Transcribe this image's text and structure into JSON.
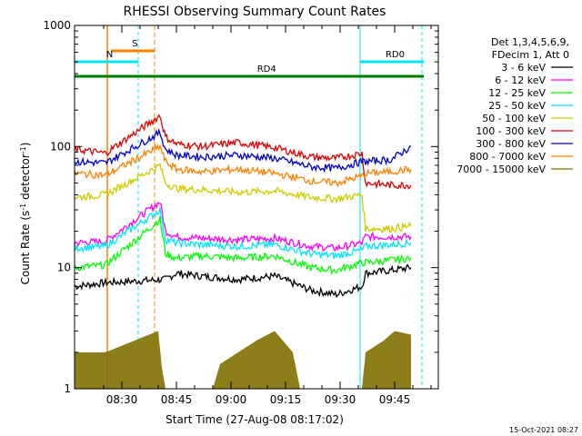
{
  "colors": {
    "3-6": "#000000",
    "6-12": "#ff00ff",
    "12-25": "#00ff00",
    "25-50": "#00e5ff",
    "50-100": "#cccc00",
    "100-300": "#dd0000",
    "300-800": "#0000cc",
    "800-7000": "#ff8000",
    "7000-15000": "#807000",
    "flare_bar": "#ff8000",
    "cyan_bar": "#00e5ff",
    "green_bar": "#008000"
  },
  "chart_data": {
    "type": "line",
    "title": "RHESSI Observing Summary Count Rates",
    "xlabel": "Start Time (27-Aug-08 08:17:02)",
    "ylabel_main": "Count Rate (s",
    "ylabel_sup1": "-1",
    "ylabel_mid": " detector",
    "ylabel_sup2": "-1",
    "ylabel_end": ")",
    "y_scale": "log",
    "ylim": [
      1,
      1000
    ],
    "y_ticks": [
      1,
      10,
      100,
      1000
    ],
    "y_tick_labels": [
      "1",
      "10",
      "100",
      "1000"
    ],
    "x_range_min": [
      0,
      100
    ],
    "x_tick_values": [
      13,
      28,
      43,
      58,
      73,
      88
    ],
    "x_tick_labels": [
      "08:30",
      "08:45",
      "09:00",
      "09:15",
      "09:30",
      "09:45"
    ],
    "legend_header": [
      "Det 1,3,4,5,6,9,",
      "FDecim 1, Att 0"
    ],
    "series": [
      {
        "name": "3 - 6 keV",
        "key": "3-6",
        "x": [
          0,
          8.5,
          25,
          28,
          35,
          45,
          55,
          65,
          72,
          79,
          80,
          87,
          92.5
        ],
        "y": [
          7,
          7.5,
          8,
          9,
          8.5,
          8,
          8.5,
          6.5,
          6,
          7,
          9,
          9.5,
          10
        ]
      },
      {
        "name": "6 - 12 keV",
        "key": "6-12",
        "x": [
          0,
          8.5,
          23.5,
          25,
          28,
          35,
          45,
          55,
          65,
          72,
          79,
          80,
          87,
          92.5
        ],
        "y": [
          16,
          16.5,
          35,
          20,
          18,
          17.5,
          17,
          17.5,
          15,
          14.5,
          16,
          18,
          18,
          18
        ]
      },
      {
        "name": "12 - 25 keV",
        "key": "12-25",
        "x": [
          0,
          8.5,
          23.5,
          25,
          28,
          35,
          45,
          55,
          65,
          72,
          79,
          80,
          87,
          92.5
        ],
        "y": [
          10,
          10.5,
          25,
          13,
          12,
          12.5,
          12,
          12.5,
          10,
          9.5,
          11,
          11,
          11.5,
          12
        ]
      },
      {
        "name": "25 - 50 keV",
        "key": "25-50",
        "x": [
          0,
          8.5,
          23.5,
          25,
          28,
          35,
          45,
          55,
          65,
          72,
          79,
          80,
          87,
          92.5
        ],
        "y": [
          14.5,
          15,
          30,
          17,
          16,
          15.5,
          15,
          15.5,
          13,
          12.5,
          14,
          15,
          15.5,
          16
        ]
      },
      {
        "name": "50 - 100 keV",
        "key": "50-100",
        "x": [
          0,
          8.5,
          23.5,
          25,
          28,
          35,
          45,
          55,
          65,
          72,
          79,
          80,
          87,
          92.5
        ],
        "y": [
          38,
          40,
          70,
          50,
          45,
          44,
          42,
          43,
          38,
          37,
          40,
          21,
          21,
          22
        ]
      },
      {
        "name": "100 - 300 keV",
        "key": "100-300",
        "x": [
          0,
          8.5,
          23.5,
          25,
          28,
          35,
          45,
          55,
          65,
          72,
          79,
          80,
          87,
          92.5
        ],
        "y": [
          95,
          88,
          180,
          120,
          105,
          100,
          108,
          98,
          82,
          80,
          88,
          50,
          48,
          48
        ]
      },
      {
        "name": "300 - 800 keV",
        "key": "300-800",
        "x": [
          0,
          8.5,
          23.5,
          25,
          28,
          35,
          45,
          55,
          65,
          72,
          79,
          80,
          87,
          92.5
        ],
        "y": [
          75,
          73,
          130,
          95,
          85,
          82,
          85,
          80,
          68,
          66,
          75,
          75,
          78,
          100
        ]
      },
      {
        "name": "800 - 7000 keV",
        "key": "800-7000",
        "x": [
          0,
          8.5,
          23.5,
          25,
          28,
          35,
          45,
          55,
          65,
          72,
          79,
          80,
          87,
          92.5
        ],
        "y": [
          60,
          58,
          100,
          75,
          65,
          62,
          65,
          60,
          52,
          50,
          57,
          60,
          62,
          65
        ]
      },
      {
        "name": "7000 - 15000 keV",
        "key": "7000-15000",
        "x": [
          0,
          3,
          8.5,
          23,
          24,
          25,
          38,
          40,
          45,
          50,
          55,
          60,
          62,
          79,
          80,
          85,
          88,
          92.5
        ],
        "y": [
          2,
          2,
          2,
          3,
          1.5,
          1,
          1,
          1.6,
          2,
          2.5,
          3,
          2,
          1,
          1,
          2,
          2.5,
          3,
          2.8
        ]
      }
    ],
    "verticals_solid_cyan": [
      0,
      78.5
    ],
    "verticals_dashed_cyan": [
      17.5,
      95.5
    ],
    "verticals_solid_orange": [
      9
    ],
    "verticals_dashed_orange": [
      22
    ],
    "flags": [
      {
        "label": "S",
        "key": "flare_bar",
        "x0": 10,
        "x1": 22,
        "y": 0.93
      },
      {
        "label": "N",
        "key": "cyan_bar",
        "x0": 0,
        "x1": 17.5,
        "y": 0.9
      },
      {
        "label": "RD0",
        "key": "cyan_bar",
        "x0": 78.5,
        "x1": 96,
        "y": 0.9
      },
      {
        "label": "RD4",
        "key": "green_bar",
        "x0": 0,
        "x1": 96,
        "y": 0.86
      }
    ]
  },
  "footer": "15-Oct-2021 08:27"
}
